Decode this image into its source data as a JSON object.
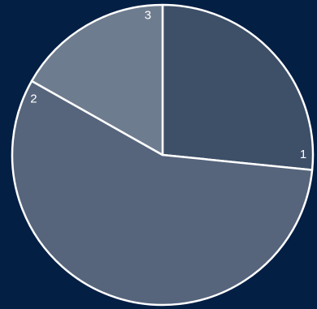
{
  "page": {
    "background": "#041f44"
  },
  "chart_data": {
    "type": "pie",
    "start_angle_deg": 0,
    "direction": "clockwise",
    "slice_stroke_color": "#ffffff",
    "slices": [
      {
        "label": "1",
        "value": 26.6,
        "color": "#3e5068"
      },
      {
        "label": "2",
        "value": 56.6,
        "color": "#56657c"
      },
      {
        "label": "3",
        "value": 16.8,
        "color": "#6e7c8f"
      }
    ],
    "title": "",
    "legend": "none"
  }
}
